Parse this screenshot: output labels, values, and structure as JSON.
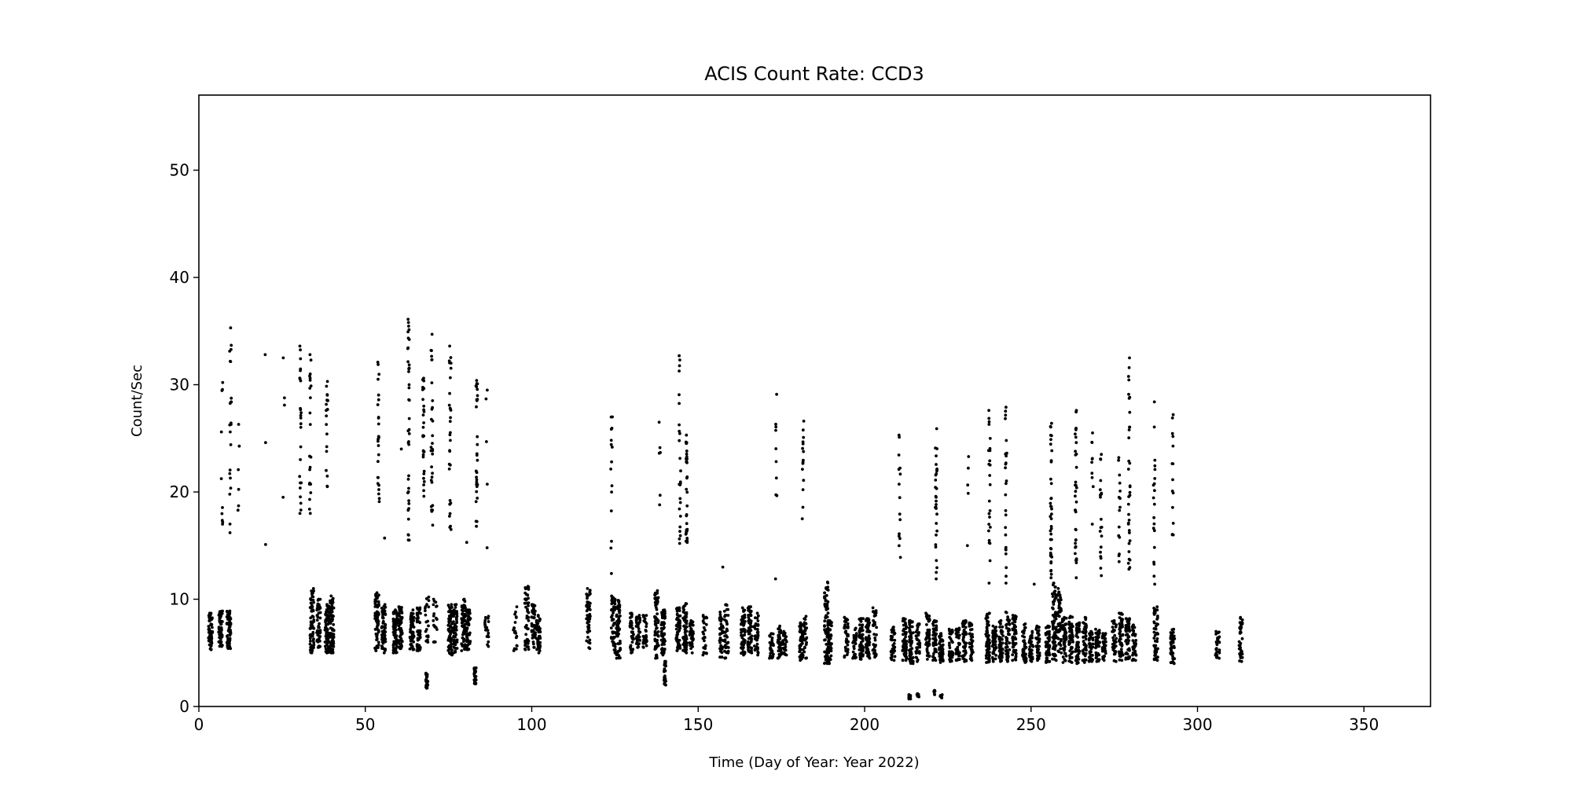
{
  "chart_data": {
    "type": "scatter",
    "title": "ACIS Count Rate: CCD3",
    "xlabel": "Time (Day of Year: Year 2022)",
    "ylabel": "Count/Sec",
    "xlim": [
      0,
      370
    ],
    "ylim": [
      0,
      57
    ],
    "xticks": [
      0,
      50,
      100,
      150,
      200,
      250,
      300,
      350
    ],
    "yticks": [
      0,
      10,
      20,
      30,
      40,
      50
    ],
    "grid": false,
    "marker_color": "#000000",
    "note": "Points are given as clusters [day, y_min, y_max, count]; individual points are spread within each cluster",
    "clusters_low_band": [
      [
        3.5,
        5.3,
        8.7,
        60
      ],
      [
        6.5,
        5.6,
        8.9,
        60
      ],
      [
        9,
        5.4,
        8.9,
        60
      ],
      [
        34,
        5,
        11,
        70
      ],
      [
        36,
        5.5,
        10,
        50
      ],
      [
        38.5,
        5,
        9.5,
        70
      ],
      [
        40,
        5,
        10.3,
        80
      ],
      [
        53.5,
        5.2,
        10.6,
        70
      ],
      [
        55.5,
        5,
        9.5,
        60
      ],
      [
        59,
        5,
        9,
        70
      ],
      [
        60.5,
        5.4,
        9.3,
        60
      ],
      [
        64,
        5.3,
        9,
        60
      ],
      [
        66,
        5.2,
        9.2,
        50
      ],
      [
        68.5,
        6,
        10.2,
        20
      ],
      [
        71,
        6,
        10,
        20
      ],
      [
        75.5,
        4.8,
        9.5,
        70
      ],
      [
        77,
        5,
        9.5,
        60
      ],
      [
        79.5,
        5.2,
        10,
        60
      ],
      [
        81,
        5.3,
        9,
        60
      ],
      [
        86.5,
        5.6,
        8.4,
        20
      ],
      [
        95,
        5.2,
        9.3,
        20
      ],
      [
        98.5,
        5.3,
        11.2,
        50
      ],
      [
        100.5,
        5.5,
        9.5,
        50
      ],
      [
        102,
        5,
        8.5,
        50
      ],
      [
        117,
        5.4,
        11,
        50
      ],
      [
        124.5,
        5,
        10.3,
        60
      ],
      [
        126,
        4.5,
        9.9,
        70
      ],
      [
        130,
        5,
        8.7,
        40
      ],
      [
        132,
        5.5,
        8.5,
        40
      ],
      [
        134,
        5.5,
        8.5,
        30
      ],
      [
        137.5,
        4.5,
        10.8,
        70
      ],
      [
        139.5,
        4.8,
        9,
        60
      ],
      [
        144,
        5.2,
        9.2,
        60
      ],
      [
        146,
        5,
        9.6,
        60
      ],
      [
        148,
        5,
        8,
        40
      ],
      [
        152,
        4.8,
        8.5,
        30
      ],
      [
        157,
        4.6,
        8.8,
        40
      ],
      [
        158.5,
        4.5,
        9.5,
        40
      ],
      [
        163.5,
        4.8,
        9.2,
        60
      ],
      [
        165.5,
        5,
        9.3,
        60
      ],
      [
        167.5,
        4.8,
        8.7,
        40
      ],
      [
        172,
        4.5,
        6.8,
        30
      ],
      [
        174.5,
        4.5,
        7.5,
        40
      ],
      [
        176,
        4.8,
        7,
        30
      ],
      [
        181,
        4.3,
        7.8,
        50
      ],
      [
        182,
        4.5,
        8.4,
        30
      ],
      [
        188.5,
        4,
        11.6,
        80
      ],
      [
        189.5,
        4,
        8,
        50
      ],
      [
        194.5,
        4.6,
        8.3,
        40
      ],
      [
        197,
        4.5,
        7.3,
        30
      ],
      [
        199,
        4.4,
        8.2,
        60
      ],
      [
        201,
        4.5,
        8.2,
        50
      ],
      [
        203,
        4.6,
        9.2,
        40
      ],
      [
        208.5,
        4.3,
        7.4,
        40
      ],
      [
        212,
        4.3,
        8.2,
        60
      ],
      [
        214,
        4,
        8,
        60
      ],
      [
        216,
        4.2,
        7.7,
        40
      ],
      [
        219,
        4.4,
        8.7,
        50
      ],
      [
        221,
        4.3,
        8,
        50
      ],
      [
        223,
        4.1,
        6.8,
        40
      ],
      [
        226,
        4.2,
        7.2,
        40
      ],
      [
        228,
        4.3,
        7.3,
        40
      ],
      [
        230,
        4.2,
        8,
        50
      ],
      [
        232,
        4.3,
        7.8,
        40
      ],
      [
        237,
        4.1,
        8.7,
        60
      ],
      [
        239,
        4.2,
        7.5,
        50
      ],
      [
        241,
        4.2,
        8,
        50
      ],
      [
        243,
        4.2,
        8.8,
        50
      ],
      [
        245,
        4.3,
        8.5,
        50
      ],
      [
        248,
        4.1,
        7.7,
        40
      ],
      [
        250,
        4.2,
        7,
        40
      ],
      [
        252,
        4.3,
        7.5,
        40
      ],
      [
        255,
        4.1,
        7.5,
        60
      ],
      [
        257,
        4.3,
        11.5,
        80
      ],
      [
        258.5,
        5,
        11,
        60
      ],
      [
        260,
        4.1,
        8.3,
        50
      ],
      [
        262,
        4.1,
        8.4,
        50
      ],
      [
        264,
        4,
        7.8,
        50
      ],
      [
        266,
        4.1,
        8.3,
        50
      ],
      [
        268,
        4.2,
        7,
        40
      ],
      [
        270,
        4.2,
        7.2,
        40
      ],
      [
        272,
        4.3,
        6.8,
        40
      ],
      [
        275,
        4.2,
        8,
        40
      ],
      [
        277,
        4.3,
        8.7,
        50
      ],
      [
        279,
        4.4,
        8.2,
        50
      ],
      [
        281,
        4.3,
        7.6,
        40
      ],
      [
        287.5,
        4.3,
        9.3,
        50
      ],
      [
        292.5,
        4,
        7.2,
        50
      ],
      [
        306,
        4.5,
        7,
        30
      ],
      [
        313,
        4.2,
        8.3,
        40
      ]
    ],
    "clusters_low_dips": [
      [
        68.5,
        1.7,
        3.1,
        30
      ],
      [
        83,
        2.1,
        3.6,
        30
      ],
      [
        140,
        2,
        4.2,
        30
      ],
      [
        213.5,
        0.7,
        1.1,
        20
      ],
      [
        216,
        0.9,
        1.2,
        8
      ],
      [
        221,
        1.1,
        1.5,
        8
      ],
      [
        223,
        0.8,
        1.1,
        8
      ]
    ],
    "clusters_high": [
      [
        7,
        17,
        30.2,
        10
      ],
      [
        9.5,
        16.2,
        35.3,
        22
      ],
      [
        12,
        18.3,
        26.3,
        6
      ],
      [
        20,
        15.1,
        32.8,
        3
      ],
      [
        25.5,
        19.5,
        32.5,
        4
      ],
      [
        30.5,
        18,
        33.6,
        25
      ],
      [
        33.5,
        18,
        32.8,
        22
      ],
      [
        38.5,
        20.5,
        30.3,
        20
      ],
      [
        54,
        19.1,
        32.1,
        25
      ],
      [
        56,
        15.7,
        15.7,
        1
      ],
      [
        61,
        24,
        24,
        1
      ],
      [
        63,
        15.5,
        36.1,
        40
      ],
      [
        67.5,
        19.6,
        30.6,
        30
      ],
      [
        70,
        16.9,
        34.7,
        30
      ],
      [
        75.5,
        16.5,
        33.6,
        30
      ],
      [
        80.5,
        15.3,
        15.3,
        1
      ],
      [
        83.5,
        16.8,
        30.4,
        30
      ],
      [
        86.5,
        14.8,
        29.5,
        5
      ],
      [
        124,
        12.4,
        27,
        15
      ],
      [
        138.5,
        18.8,
        26.5,
        6
      ],
      [
        144.5,
        15.2,
        32.7,
        25
      ],
      [
        146.5,
        15.3,
        25.3,
        30
      ],
      [
        157.5,
        13,
        13,
        1
      ],
      [
        173.5,
        11.9,
        29.1,
        10
      ],
      [
        181.5,
        17.5,
        26.6,
        15
      ],
      [
        210.5,
        13.9,
        25.3,
        15
      ],
      [
        221.5,
        11.9,
        25.9,
        30
      ],
      [
        231,
        15,
        23.3,
        5
      ],
      [
        237.5,
        11.5,
        27.6,
        25
      ],
      [
        242.5,
        11.5,
        27.9,
        25
      ],
      [
        251,
        11.4,
        11.4,
        1
      ],
      [
        256,
        12,
        26.4,
        40
      ],
      [
        263.5,
        12,
        27.6,
        35
      ],
      [
        268.5,
        17,
        25.5,
        10
      ],
      [
        271,
        12.2,
        23.5,
        20
      ],
      [
        276.5,
        13.5,
        23.2,
        15
      ],
      [
        279.5,
        12.8,
        32.5,
        35
      ],
      [
        287,
        11.4,
        28.4,
        20
      ],
      [
        292.5,
        16,
        27.2,
        15
      ]
    ]
  }
}
